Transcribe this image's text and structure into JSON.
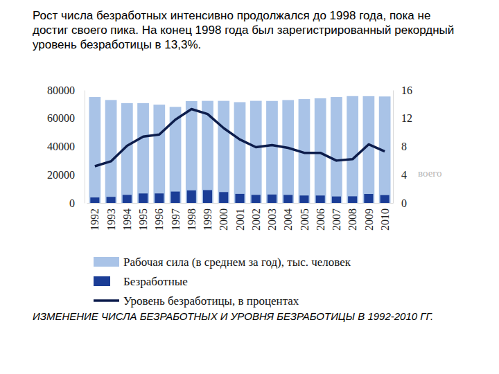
{
  "chart_data": {
    "type": "bar",
    "title": "ИЗМЕНЕНИЕ ЧИСЛА БЕЗРАБОТНЫХ И УРОВНЯ БЕЗРАБОТИЦЫ В 1992-2010 ГГ.",
    "annotations": [
      "Рост числа безработных интенсивно продолжался до 1998 года, пока не достиг своего пика. На конец 1998 года был зарегистрированный рекордный уровень безработицы в 13,3%.",
      "воего"
    ],
    "categories": [
      "1992",
      "1993",
      "1994",
      "1995",
      "1996",
      "1997",
      "1998",
      "1999",
      "2000",
      "2001",
      "2002",
      "2003",
      "2004",
      "2005",
      "2006",
      "2007",
      "2008",
      "2009",
      "2010"
    ],
    "series": [
      {
        "name": "Рабочая сила (в среднем за год), тыс. человек",
        "type": "bar",
        "color": "#a9c3e7",
        "values": [
          75060,
          72946,
          70740,
          70740,
          69660,
          68079,
          72175,
          72332,
          72332,
          71411,
          72357,
          72273,
          72909,
          73581,
          74156,
          75060,
          75700,
          75660,
          75440
        ]
      },
      {
        "name": "Безработные",
        "type": "bar",
        "color": "#1b3d96",
        "values": [
          3877,
          4305,
          5702,
          6712,
          6732,
          8058,
          8902,
          9094,
          7700,
          6424,
          5698,
          5959,
          5675,
          5263,
          5250,
          4589,
          4697,
          6373,
          5544
        ]
      },
      {
        "name": "Уровень безработицы, в процентах",
        "type": "line",
        "axis": "y2",
        "color": "#0d1d4c",
        "values": [
          5.2,
          5.9,
          8.1,
          9.4,
          9.7,
          11.8,
          13.3,
          12.6,
          10.6,
          9.0,
          7.9,
          8.2,
          7.8,
          7.1,
          7.1,
          6.0,
          6.2,
          8.3,
          7.3
        ]
      }
    ],
    "ylim": [
      0,
      80000
    ],
    "yticks": [
      0,
      20000,
      40000,
      60000,
      80000
    ],
    "y2lim": [
      0,
      16
    ],
    "y2ticks": [
      0,
      4,
      8,
      12,
      16
    ],
    "grid": false,
    "legend": "bottom"
  }
}
